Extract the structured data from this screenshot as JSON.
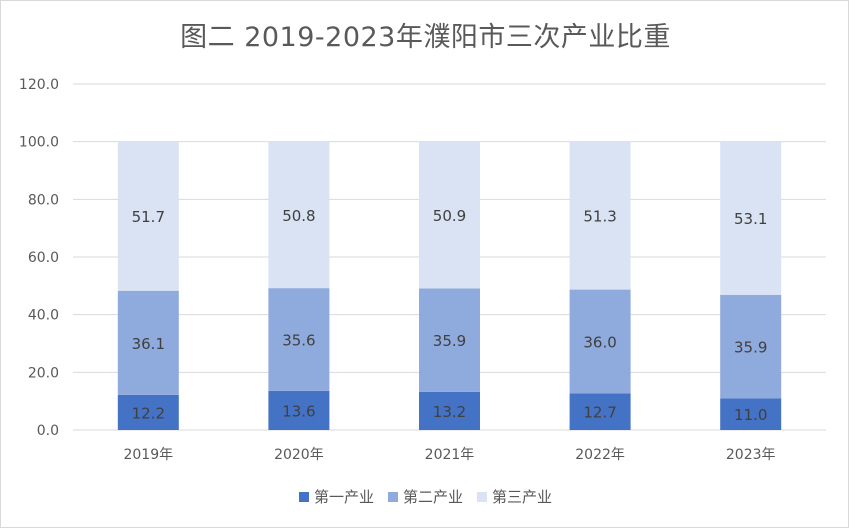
{
  "chart_data": {
    "type": "bar",
    "stacked": true,
    "title": "图二  2019-2023年濮阳市三次产业比重",
    "categories": [
      "2019年",
      "2020年",
      "2021年",
      "2022年",
      "2023年"
    ],
    "series": [
      {
        "name": "第一产业",
        "color": "#4472c4",
        "values": [
          12.2,
          13.6,
          13.2,
          12.7,
          11.0
        ]
      },
      {
        "name": "第二产业",
        "color": "#8faadc",
        "values": [
          36.1,
          35.6,
          35.9,
          36.0,
          35.9
        ]
      },
      {
        "name": "第三产业",
        "color": "#dae3f3",
        "values": [
          51.7,
          50.8,
          50.9,
          51.3,
          53.1
        ]
      }
    ],
    "ylim": [
      0,
      120
    ],
    "yticks": [
      "0.0",
      "20.0",
      "40.0",
      "60.0",
      "80.0",
      "100.0",
      "120.0"
    ],
    "grid": true,
    "legend_position": "bottom"
  }
}
